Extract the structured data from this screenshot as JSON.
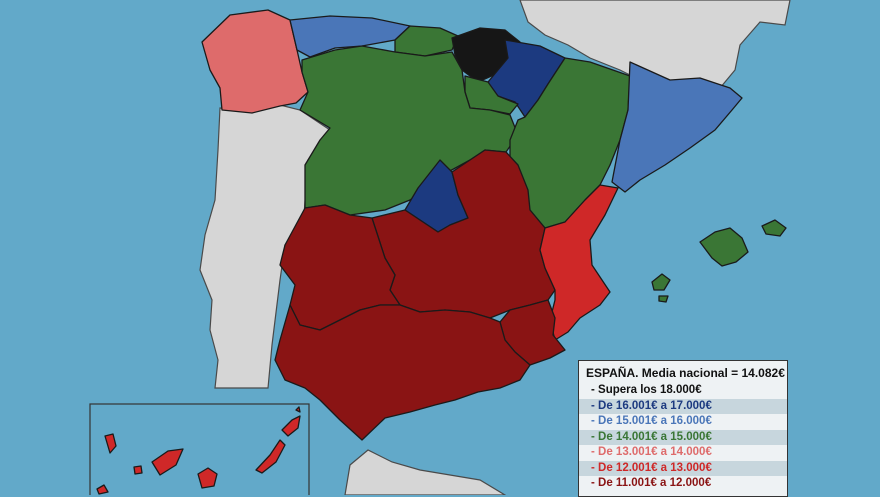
{
  "colors": {
    "sea": "#62a9c9",
    "other_land": "#d6d6d6",
    "cat_supera_18000": "#161616",
    "cat_16001_17000": "#1c3a80",
    "cat_15001_16000": "#4a76b8",
    "cat_14001_15000": "#3a7635",
    "cat_13001_14000": "#de6b6b",
    "cat_12001_13000": "#cf2828",
    "cat_11001_12000": "#8a1414"
  },
  "legend": {
    "title": "ESPAÑA. Media nacional = 14.082€",
    "items": [
      {
        "label": "- Supera los 18.000€",
        "color": "#111111"
      },
      {
        "label": "- De 16.001€ a 17.000€",
        "color": "#1c3a80"
      },
      {
        "label": "- De 15.001€ a 16.000€",
        "color": "#4a76b8"
      },
      {
        "label": "- De 14.001€ a 15.000€",
        "color": "#3a7635"
      },
      {
        "label": "- De 13.001€ a 14.000€",
        "color": "#de6b6b"
      },
      {
        "label": "- De 12.001€ a 13.000€",
        "color": "#cf2828"
      },
      {
        "label": "- De 11.001€ a 12.000€",
        "color": "#8a1414"
      }
    ]
  }
}
